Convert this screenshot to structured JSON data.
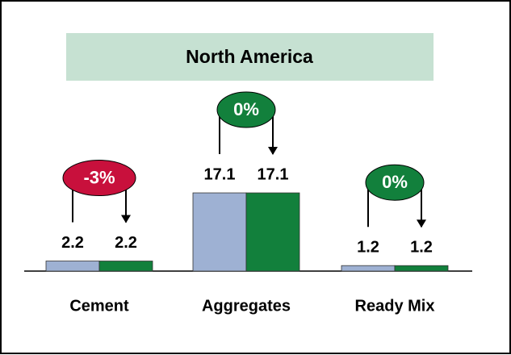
{
  "chart_data": {
    "type": "bar",
    "title": "North America",
    "categories": [
      "Cement",
      "Aggregates",
      "Ready Mix"
    ],
    "series": [
      {
        "color": "#9eb1d3",
        "values": [
          2.2,
          17.1,
          1.2
        ]
      },
      {
        "color": "#12803c",
        "values": [
          2.2,
          17.1,
          1.2
        ]
      }
    ],
    "annotations": [
      {
        "label": "-3%",
        "color": "#c8103c"
      },
      {
        "label": "0%",
        "color": "#12803c"
      },
      {
        "label": "0%",
        "color": "#12803c"
      }
    ]
  }
}
